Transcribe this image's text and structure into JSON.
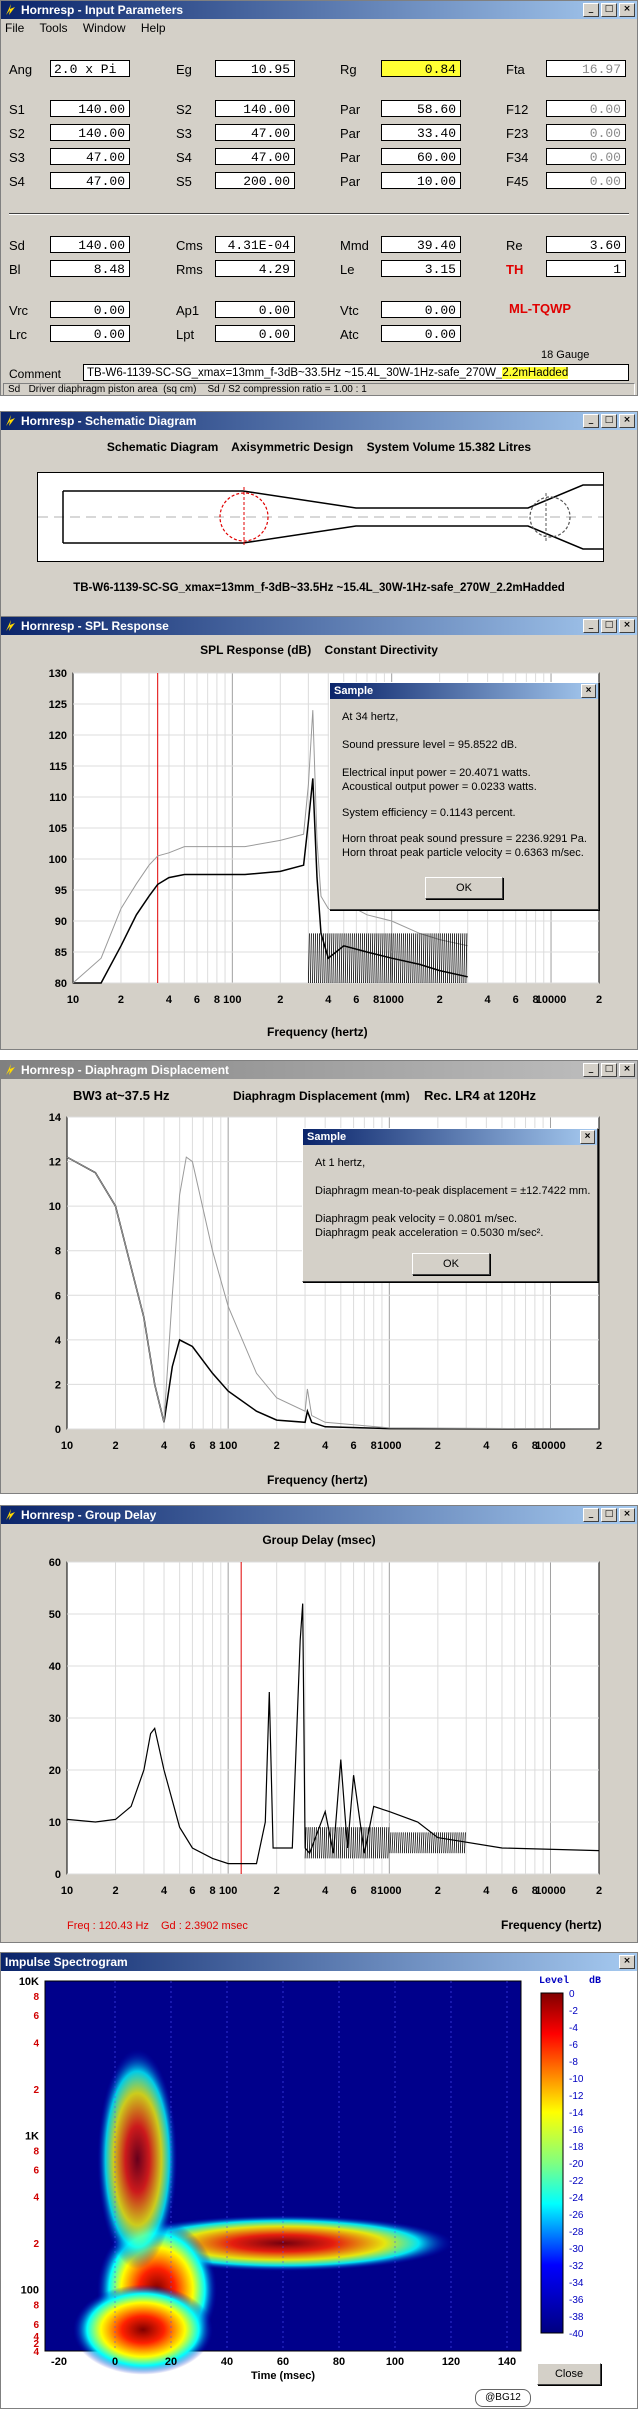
{
  "input_params": {
    "title": "Hornresp - Input Parameters",
    "menu": [
      "File",
      "Tools",
      "Window",
      "Help"
    ],
    "row1": [
      {
        "label": "Ang",
        "value": "2.0 x Pi"
      },
      {
        "label": "Eg",
        "value": "10.95"
      },
      {
        "label": "Rg",
        "value": "0.84"
      },
      {
        "label": "Fta",
        "value": "16.97"
      }
    ],
    "rows": [
      [
        {
          "label": "S1",
          "value": "140.00"
        },
        {
          "label": "S2",
          "value": "140.00"
        },
        {
          "label": "Par",
          "value": "58.60"
        },
        {
          "label": "F12",
          "value": "0.00"
        }
      ],
      [
        {
          "label": "S2",
          "value": "140.00"
        },
        {
          "label": "S3",
          "value": "47.00"
        },
        {
          "label": "Par",
          "value": "33.40"
        },
        {
          "label": "F23",
          "value": "0.00"
        }
      ],
      [
        {
          "label": "S3",
          "value": "47.00"
        },
        {
          "label": "S4",
          "value": "47.00"
        },
        {
          "label": "Par",
          "value": "60.00"
        },
        {
          "label": "F34",
          "value": "0.00"
        }
      ],
      [
        {
          "label": "S4",
          "value": "47.00"
        },
        {
          "label": "S5",
          "value": "200.00"
        },
        {
          "label": "Par",
          "value": "10.00"
        },
        {
          "label": "F45",
          "value": "0.00"
        }
      ]
    ],
    "driver_rows": [
      [
        {
          "label": "Sd",
          "value": "140.00"
        },
        {
          "label": "Cms",
          "value": "4.31E-04"
        },
        {
          "label": "Mmd",
          "value": "39.40"
        },
        {
          "label": "Re",
          "value": "3.60"
        }
      ],
      [
        {
          "label": "Bl",
          "value": "8.48"
        },
        {
          "label": "Rms",
          "value": "4.29"
        },
        {
          "label": "Le",
          "value": "3.15"
        },
        {
          "label": "TH",
          "value": "1"
        }
      ]
    ],
    "vrc_row": [
      {
        "label": "Vrc",
        "value": "0.00"
      },
      {
        "label": "Ap1",
        "value": "0.00"
      },
      {
        "label": "Vtc",
        "value": "0.00"
      }
    ],
    "lrc_row": [
      {
        "label": "Lrc",
        "value": "0.00"
      },
      {
        "label": "Lpt",
        "value": "0.00"
      },
      {
        "label": "Atc",
        "value": "0.00"
      }
    ],
    "model": "ML-TQWP",
    "gauge": "18 Gauge",
    "comment_label": "Comment",
    "comment_main": "TB-W6-1139-SC-SG_xmax=13mm_f-3dB~33.5Hz ~15.4L_30W-1Hz-safe_270W_",
    "comment_hl": "2.2mHadded",
    "status": "Sd   Driver diaphragm piston area  (sq cm)    Sd / S2 compression ratio = 1.00 : 1"
  },
  "schematic": {
    "title": "Hornresp - Schematic Diagram",
    "heading": "Schematic Diagram    Axisymmetric Design    System Volume 15.382 Litres",
    "caption": "TB-W6-1139-SC-SG_xmax=13mm_f-3dB~33.5Hz ~15.4L_30W-1Hz-safe_270W_2.2mHadded"
  },
  "spl": {
    "title": "Hornresp - SPL Response",
    "heading": "SPL Response (dB)    Constant Directivity",
    "xlabel": "Frequency (hertz)",
    "y_ticks": [
      "130",
      "125",
      "120",
      "115",
      "110",
      "105",
      "100",
      "95",
      "90",
      "85",
      "80"
    ],
    "x_ticks": [
      "10",
      "2",
      "4",
      "6",
      "8",
      "100",
      "2",
      "4",
      "6",
      "8",
      "1000",
      "2",
      "4",
      "6",
      "8",
      "10000",
      "2"
    ],
    "dialog": {
      "title": "Sample",
      "lines": [
        "At 34 hertz,",
        "Sound pressure level = 95.8522 dB.",
        "Electrical input power = 20.4071 watts.",
        "Acoustical output power = 0.0233 watts.",
        "System efficiency = 0.1143 percent.",
        "Horn throat peak sound pressure = 2236.9291 Pa.",
        "Horn throat peak particle velocity = 0.6363 m/sec."
      ],
      "ok": "OK"
    }
  },
  "displacement": {
    "title": "Hornresp - Diaphragm Displacement",
    "heading_left": "BW3 at~37.5 Hz",
    "heading_mid": "Diaphragm Displacement (mm)",
    "heading_right": "Rec. LR4 at 120Hz",
    "xlabel": "Frequency (hertz)",
    "y_ticks": [
      "14",
      "12",
      "10",
      "8",
      "6",
      "4",
      "2",
      "0"
    ],
    "x_ticks": [
      "10",
      "2",
      "4",
      "6",
      "8",
      "100",
      "2",
      "4",
      "6",
      "8",
      "1000",
      "2",
      "4",
      "6",
      "8",
      "10000",
      "2"
    ],
    "dialog": {
      "title": "Sample",
      "lines": [
        "At 1 hertz,",
        "Diaphragm mean-to-peak displacement = ±12.7422 mm.",
        "Diaphragm peak velocity = 0.0801 m/sec.",
        "Diaphragm peak acceleration = 0.5030 m/sec²."
      ],
      "ok": "OK"
    }
  },
  "group_delay": {
    "title": "Hornresp - Group Delay",
    "heading": "Group Delay (msec)",
    "xlabel": "Frequency (hertz)",
    "y_ticks": [
      "60",
      "50",
      "40",
      "30",
      "20",
      "10",
      "0"
    ],
    "x_ticks": [
      "10",
      "2",
      "4",
      "6",
      "8",
      "100",
      "2",
      "4",
      "6",
      "8",
      "1000",
      "2",
      "4",
      "6",
      "8",
      "10000",
      "2"
    ],
    "freq_readout": "Freq : 120.43 Hz",
    "gd_readout": "Gd : 2.3902 msec"
  },
  "spectrogram": {
    "title": "Impulse Spectrogram",
    "y_ticks": [
      "10K",
      "8",
      "6",
      "4",
      "2",
      "1K",
      "8",
      "6",
      "4",
      "2",
      "100",
      "8",
      "6",
      "4",
      "2",
      "4"
    ],
    "x_ticks": [
      "-20",
      "0",
      "20",
      "40",
      "60",
      "80",
      "100",
      "120",
      "140"
    ],
    "xlabel": "Time (msec)",
    "level_label": "Level",
    "db_label": "dB",
    "colorbar_ticks": [
      "0",
      "-2",
      "-4",
      "-6",
      "-8",
      "-10",
      "-12",
      "-14",
      "-16",
      "-18",
      "-20",
      "-22",
      "-24",
      "-26",
      "-28",
      "-30",
      "-32",
      "-34",
      "-36",
      "-38",
      "-40"
    ],
    "close": "Close",
    "credit": "@BG12"
  },
  "chart_data": [
    {
      "type": "line",
      "title": "SPL Response (dB)    Constant Directivity",
      "xlabel": "Frequency (hertz)",
      "ylabel": "",
      "x_scale": "log",
      "xlim": [
        10,
        20000
      ],
      "ylim": [
        80,
        130
      ],
      "series": [
        {
          "x": [
            10,
            15,
            20,
            25,
            30,
            34,
            40,
            50,
            80,
            120,
            200,
            280,
            300,
            320,
            340,
            360,
            400,
            500,
            700,
            1000,
            1500,
            2000,
            3000
          ],
          "y": [
            70,
            80,
            86,
            91,
            94,
            95.9,
            97,
            97.5,
            97.5,
            97.5,
            98,
            99,
            106,
            113,
            97,
            88,
            84,
            86,
            85,
            84,
            83,
            82,
            81
          ]
        },
        {
          "x": [
            10,
            15,
            20,
            25,
            30,
            34,
            40,
            50,
            80,
            120,
            200,
            280,
            300,
            320,
            340,
            360,
            400,
            500,
            700,
            1000,
            1500,
            2000,
            3000
          ],
          "y": [
            72,
            84,
            92,
            96,
            99,
            100.5,
            101,
            102,
            102,
            102,
            103,
            104,
            112,
            124,
            103,
            94,
            92,
            93,
            91,
            90,
            88,
            87,
            86
          ]
        }
      ],
      "markers": [
        {
          "x": 34,
          "label": "cursor"
        }
      ],
      "grid": true
    },
    {
      "type": "line",
      "title": "Diaphragm Displacement (mm)",
      "xlabel": "Frequency (hertz)",
      "x_scale": "log",
      "xlim": [
        10,
        20000
      ],
      "ylim": [
        0,
        14
      ],
      "series": [
        {
          "x": [
            10,
            15,
            20,
            30,
            35,
            40,
            45,
            50,
            60,
            80,
            100,
            150,
            200,
            300,
            310,
            330,
            400,
            1000,
            20000
          ],
          "y": [
            12.2,
            11.5,
            10,
            5,
            2,
            0.3,
            2.8,
            4,
            3.7,
            2.5,
            1.7,
            0.8,
            0.4,
            0.3,
            0.8,
            0.3,
            0.1,
            0.02,
            0
          ]
        },
        {
          "x": [
            10,
            15,
            20,
            30,
            35,
            40,
            45,
            50,
            55,
            60,
            80,
            100,
            150,
            200,
            300,
            310,
            330,
            400,
            1000,
            20000
          ],
          "y": [
            12.2,
            11.5,
            10,
            5,
            2,
            0.3,
            6,
            10.5,
            12.2,
            12,
            8,
            5.5,
            2.5,
            1.4,
            0.8,
            1.8,
            0.6,
            0.3,
            0.05,
            0
          ]
        }
      ],
      "grid": true
    },
    {
      "type": "line",
      "title": "Group Delay (msec)",
      "xlabel": "Frequency (hertz)",
      "x_scale": "log",
      "xlim": [
        10,
        20000
      ],
      "ylim": [
        0,
        60
      ],
      "series": [
        {
          "x": [
            10,
            15,
            20,
            25,
            30,
            33,
            35,
            40,
            50,
            60,
            80,
            100,
            150,
            170,
            180,
            190,
            250,
            280,
            290,
            300,
            320,
            400,
            450,
            500,
            550,
            600,
            700,
            800,
            1000,
            1500,
            2000,
            5000,
            20000
          ],
          "y": [
            10.5,
            10,
            10.5,
            13,
            20,
            27,
            28,
            20,
            9,
            5,
            3,
            2,
            2,
            10,
            35,
            5,
            5,
            45,
            52,
            5,
            4,
            12,
            4,
            22,
            5,
            19,
            4,
            13,
            12,
            10,
            7,
            5,
            4.5
          ]
        }
      ],
      "markers": [
        {
          "x": 120.43,
          "label": "cursor"
        }
      ],
      "grid": true
    },
    {
      "type": "heatmap",
      "title": "Impulse Spectrogram",
      "xlabel": "Time (msec)",
      "y_scale": "log",
      "xlim": [
        -25,
        145
      ],
      "ylim": [
        40,
        10000
      ],
      "colorbar_range_db": [
        -40,
        0
      ]
    }
  ]
}
